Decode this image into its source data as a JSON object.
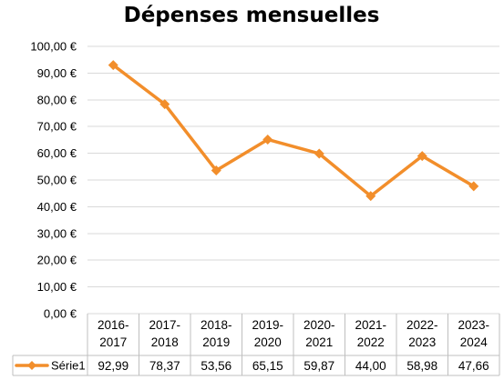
{
  "chart_data": {
    "type": "line",
    "title": "Dépenses mensuelles",
    "categories": [
      "2016-2017",
      "2017-2018",
      "2018-2019",
      "2019-2020",
      "2020-2021",
      "2021-2022",
      "2022-2023",
      "2023-2024"
    ],
    "category_lines": [
      [
        "2016-",
        "2017"
      ],
      [
        "2017-",
        "2018"
      ],
      [
        "2018-",
        "2019"
      ],
      [
        "2019-",
        "2020"
      ],
      [
        "2020-",
        "2021"
      ],
      [
        "2021-",
        "2022"
      ],
      [
        "2022-",
        "2023"
      ],
      [
        "2023-",
        "2024"
      ]
    ],
    "series": [
      {
        "name": "Série1",
        "values": [
          92.99,
          78.37,
          53.56,
          65.15,
          59.87,
          44.0,
          58.98,
          47.66
        ],
        "value_labels": [
          "92,99",
          "78,37",
          "53,56",
          "65,15",
          "59,87",
          "44,00",
          "58,98",
          "47,66"
        ],
        "color": "#F28E2B",
        "marker": "diamond"
      }
    ],
    "ylim": [
      0,
      100
    ],
    "yticks": [
      0,
      10,
      20,
      30,
      40,
      50,
      60,
      70,
      80,
      90,
      100
    ],
    "ytick_labels": [
      "0,00 €",
      "10,00 €",
      "20,00 €",
      "30,00 €",
      "40,00 €",
      "50,00 €",
      "60,00 €",
      "70,00 €",
      "80,00 €",
      "90,00 €",
      "100,00 €"
    ],
    "grid": true,
    "legend": "data-table",
    "data_table": true
  }
}
